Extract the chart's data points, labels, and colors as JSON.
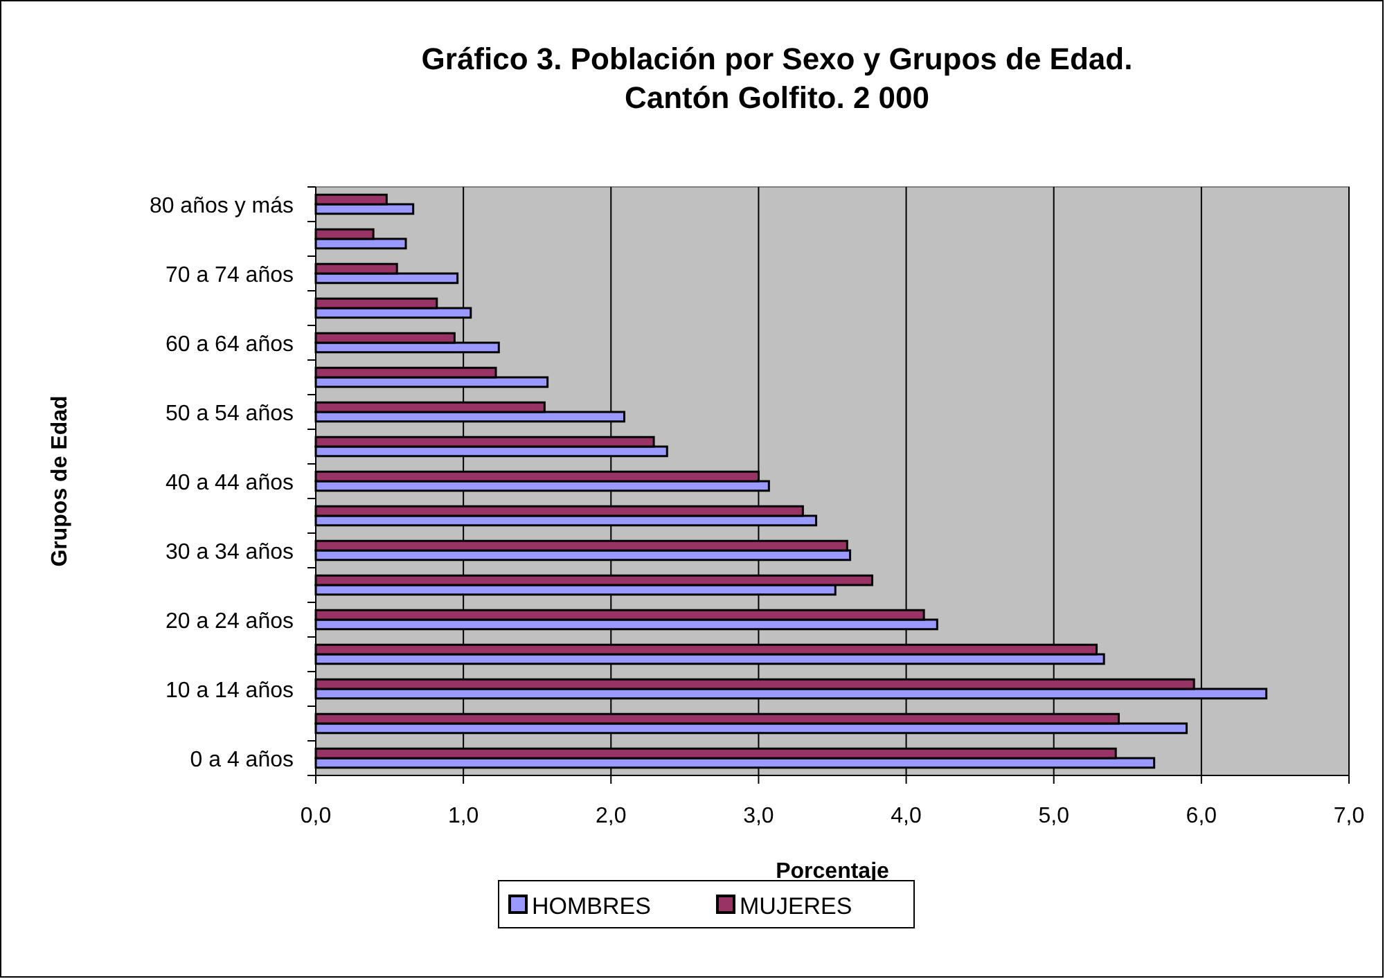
{
  "chart_data": {
    "type": "bar",
    "orientation": "horizontal",
    "title": "Gráfico 3. Población por Sexo y Grupos de Edad.\nCantón Golfito. 2 000",
    "xlabel": "Porcentaje",
    "ylabel": "Grupos de Edad",
    "categories": [
      "80 años y más",
      null,
      "70 a 74 años",
      null,
      "60 a 64 años",
      null,
      "50 a 54 años",
      null,
      "40 a 44 años",
      null,
      "30 a 34 años",
      null,
      "20 a 24 años",
      null,
      "10 a 14 años",
      null,
      "0 a 4 años"
    ],
    "series": [
      {
        "name": "HOMBRES",
        "color": "#9999ff",
        "values": [
          0.66,
          0.61,
          0.96,
          1.05,
          1.24,
          1.57,
          2.09,
          2.38,
          3.07,
          3.39,
          3.62,
          3.52,
          4.21,
          5.34,
          6.44,
          5.9,
          5.68
        ]
      },
      {
        "name": "MUJERES",
        "color": "#993366",
        "values": [
          0.48,
          0.39,
          0.55,
          0.82,
          0.94,
          1.22,
          1.55,
          2.29,
          3.0,
          3.3,
          3.6,
          3.77,
          4.12,
          5.29,
          5.95,
          5.44,
          5.42
        ]
      }
    ],
    "xlim": [
      0,
      7
    ],
    "xticks": [
      {
        "value": 0,
        "label": "0,0"
      },
      {
        "value": 1,
        "label": "1,0"
      },
      {
        "value": 2,
        "label": "2,0"
      },
      {
        "value": 3,
        "label": "3,0"
      },
      {
        "value": 4,
        "label": "4,0"
      },
      {
        "value": 5,
        "label": "5,0"
      },
      {
        "value": 6,
        "label": "6,0"
      },
      {
        "value": 7,
        "label": "7,0"
      }
    ],
    "grid": "x",
    "legend": "bottom"
  }
}
